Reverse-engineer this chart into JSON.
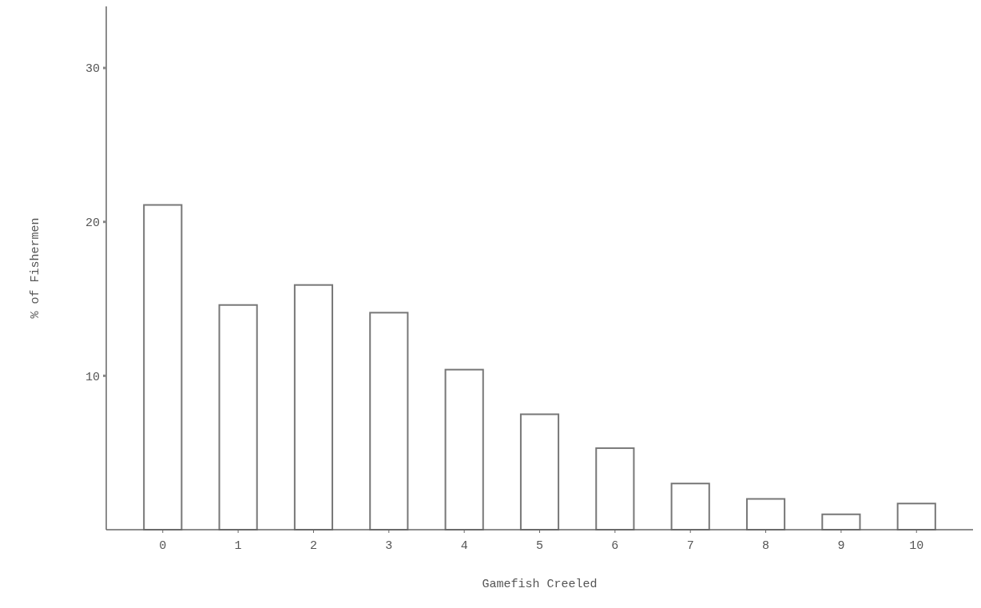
{
  "chart_data": {
    "type": "bar",
    "xlabel": "Gamefish Creeled",
    "ylabel": "% of Fishermen",
    "categories": [
      "0",
      "1",
      "2",
      "3",
      "4",
      "5",
      "6",
      "7",
      "8",
      "9",
      "10"
    ],
    "values": [
      21.1,
      14.6,
      15.9,
      14.1,
      10.4,
      7.5,
      5.3,
      3.0,
      2.0,
      1.0,
      1.7
    ],
    "color": "#ffffff",
    "ylim": [
      0,
      34
    ],
    "yticks": [
      10,
      20,
      30
    ],
    "grid": false
  }
}
